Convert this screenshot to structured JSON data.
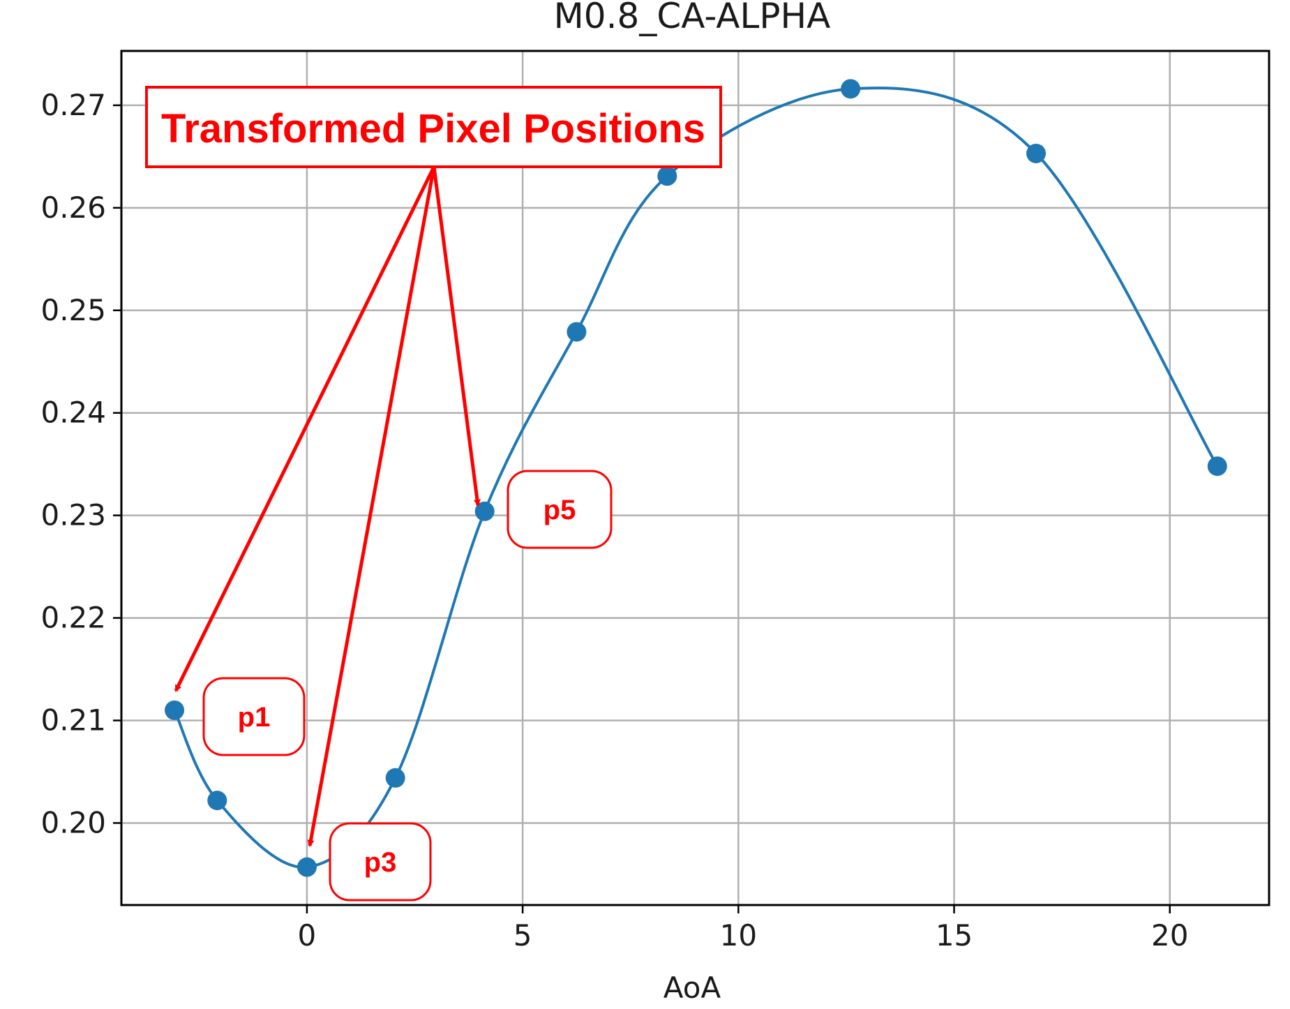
{
  "colors": {
    "series": "#1f77b4",
    "annotation": "#ff0000",
    "grid": "#b0b0b0",
    "axes": "#000000"
  },
  "chart_data": {
    "type": "line",
    "title": "M0.8_CA-ALPHA",
    "xlabel": "AoA",
    "ylabel": "",
    "xlim": [
      -4.3,
      22.3
    ],
    "ylim": [
      0.192,
      0.2753
    ],
    "xticks": [
      0,
      5,
      10,
      15,
      20
    ],
    "yticks": [
      0.2,
      0.21,
      0.22,
      0.23,
      0.24,
      0.25,
      0.26,
      0.27
    ],
    "xtick_labels": [
      "0",
      "5",
      "10",
      "15",
      "20"
    ],
    "ytick_labels": [
      "0.20",
      "0.21",
      "0.22",
      "0.23",
      "0.24",
      "0.25",
      "0.26",
      "0.27"
    ],
    "grid": true,
    "series": [
      {
        "markers": true,
        "smooth": true,
        "x": [
          -3.07,
          -2.08,
          0.0,
          2.05,
          4.12,
          6.25,
          8.35,
          12.6,
          16.9,
          21.1
        ],
        "y": [
          0.211,
          0.2022,
          0.1957,
          0.2044,
          0.2304,
          0.2479,
          0.2631,
          0.2716,
          0.2653,
          0.2348
        ]
      }
    ],
    "annotations": {
      "banner": "Transformed Pixel Positions",
      "labels": [
        {
          "text": "p1",
          "point_index": 0
        },
        {
          "text": "p3",
          "point_index": 2
        },
        {
          "text": "p5",
          "point_index": 4
        }
      ]
    }
  }
}
